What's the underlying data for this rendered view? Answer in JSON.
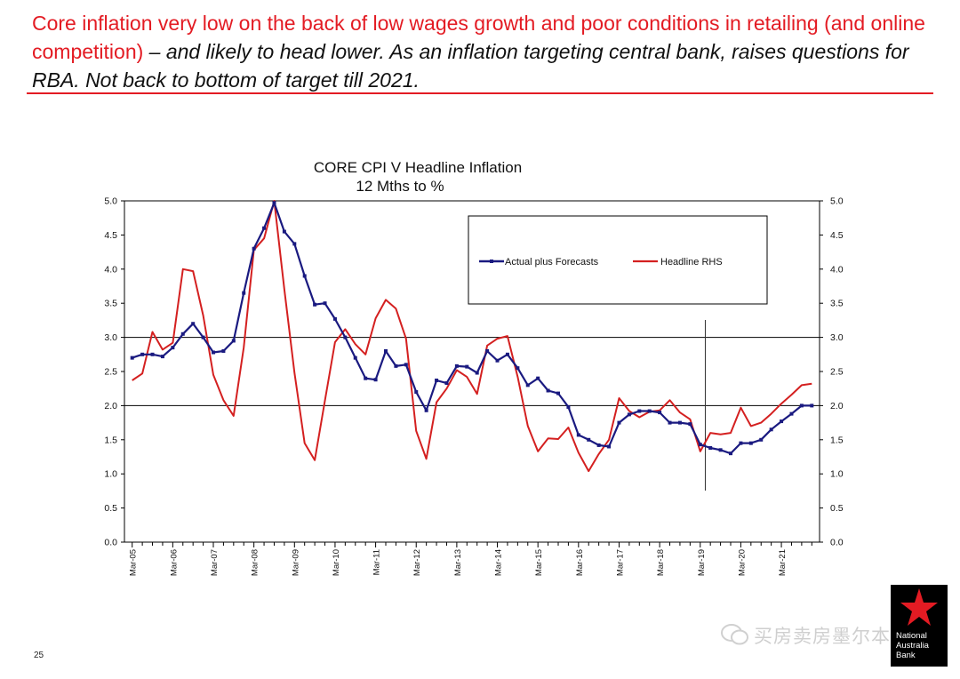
{
  "headline": {
    "part1": "Core inflation very low on the back of low wages growth and poor conditions in retailing (and online competition)",
    "part2": " – and likely to head lower.  As an inflation targeting central bank, raises questions for RBA.  Not back to bottom of target till 2021."
  },
  "page_number": "25",
  "watermark": "买房卖房墨尔本",
  "logo": {
    "line1": "National",
    "line2": "Australia",
    "line3": "Bank"
  },
  "colors": {
    "accent_red": "#e31b23",
    "core_series": "#1a1a80",
    "headline_series": "#d42020"
  },
  "chart_data": {
    "type": "line",
    "title": "CORE CPI V Headline Inflation",
    "subtitle": "12 Mths to %",
    "ylim": [
      0,
      5
    ],
    "y_ticks": [
      "0.0",
      "0.5",
      "1.0",
      "1.5",
      "2.0",
      "2.5",
      "3.0",
      "3.5",
      "4.0",
      "4.5",
      "5.0"
    ],
    "right_axis_ticks": [
      "0.0",
      "0.5",
      "1.0",
      "1.5",
      "2.0",
      "2.5",
      "3.0",
      "3.5",
      "4.0",
      "4.5",
      "5.0"
    ],
    "x_tick_labels": [
      "Mar-05",
      "Mar-06",
      "Mar-07",
      "Mar-08",
      "Mar-09",
      "Mar-10",
      "Mar-11",
      "Mar-12",
      "Mar-13",
      "Mar-14",
      "Mar-15",
      "Mar-16",
      "Mar-17",
      "Mar-18",
      "Mar-19",
      "Mar-20",
      "Mar-21"
    ],
    "x_range_quarters": [
      "Mar-05",
      "Dec-21"
    ],
    "target_band": [
      2,
      3
    ],
    "forecast_start": "Jun-19",
    "legend_position": "top-right",
    "series": [
      {
        "name": "Actual plus Forecasts",
        "marker": "square",
        "values": [
          2.7,
          2.75,
          2.75,
          2.72,
          2.85,
          3.05,
          3.2,
          3.0,
          2.78,
          2.8,
          2.95,
          3.65,
          4.3,
          4.6,
          4.97,
          4.55,
          4.37,
          3.9,
          3.48,
          3.5,
          3.27,
          3.0,
          2.7,
          2.4,
          2.38,
          2.8,
          2.58,
          2.6,
          2.2,
          1.93,
          2.37,
          2.33,
          2.58,
          2.57,
          2.48,
          2.8,
          2.66,
          2.75,
          2.55,
          2.3,
          2.4,
          2.22,
          2.18,
          1.98,
          1.57,
          1.5,
          1.42,
          1.4,
          1.75,
          1.87,
          1.92,
          1.92,
          1.9,
          1.75,
          1.75,
          1.73,
          1.43,
          1.38,
          1.35,
          1.3,
          1.45,
          1.45,
          1.5,
          1.65,
          1.77,
          1.88,
          2.0,
          2.0
        ]
      },
      {
        "name": "Headline  RHS",
        "marker": "none",
        "values": [
          2.37,
          2.47,
          3.08,
          2.82,
          2.92,
          4.0,
          3.97,
          3.32,
          2.45,
          2.08,
          1.85,
          2.85,
          4.28,
          4.45,
          5.0,
          3.7,
          2.48,
          1.45,
          1.2,
          2.07,
          2.93,
          3.12,
          2.9,
          2.75,
          3.28,
          3.55,
          3.42,
          2.98,
          1.63,
          1.22,
          2.05,
          2.25,
          2.52,
          2.42,
          2.17,
          2.88,
          2.98,
          3.02,
          2.42,
          1.7,
          1.33,
          1.52,
          1.51,
          1.68,
          1.31,
          1.04,
          1.29,
          1.5,
          2.11,
          1.92,
          1.83,
          1.91,
          1.93,
          2.08,
          1.9,
          1.8,
          1.33,
          1.6,
          1.58,
          1.6,
          1.97,
          1.7,
          1.75,
          1.88,
          2.03,
          2.16,
          2.3,
          2.32
        ]
      }
    ]
  }
}
